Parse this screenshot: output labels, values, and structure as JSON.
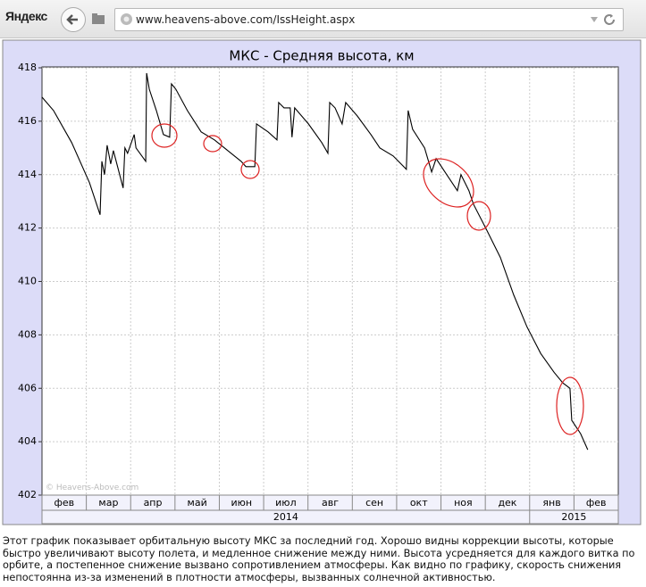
{
  "browser": {
    "logo": "Яндекс",
    "url": "www.heavens-above.com/IssHeight.aspx"
  },
  "chart_data": {
    "type": "line",
    "title": "МКС - Средняя высота, км",
    "watermark": "© Heavens-Above.com",
    "categories": [
      "фев",
      "мар",
      "апр",
      "май",
      "июн",
      "июл",
      "авг",
      "сен",
      "окт",
      "ноя",
      "дек",
      "янв",
      "фев"
    ],
    "years": [
      "2014",
      "2015"
    ],
    "x": [
      0,
      0.26,
      0.67,
      1.07,
      1.31,
      1.35,
      1.41,
      1.47,
      1.55,
      1.61,
      1.83,
      1.87,
      1.93,
      2.08,
      2.12,
      2.34,
      2.36,
      2.42,
      2.58,
      2.74,
      2.88,
      2.92,
      3.02,
      3.28,
      3.59,
      3.89,
      4.19,
      4.49,
      4.6,
      4.8,
      4.84,
      5.1,
      5.3,
      5.34,
      5.46,
      5.6,
      5.64,
      5.7,
      6.01,
      6.31,
      6.45,
      6.49,
      6.61,
      6.77,
      6.85,
      7.11,
      7.42,
      7.62,
      7.92,
      8.22,
      8.26,
      8.36,
      8.63,
      8.79,
      8.89,
      9.13,
      9.37,
      9.45,
      9.63,
      9.73,
      10.04,
      10.34,
      10.64,
      10.94,
      11.25,
      11.55,
      11.75,
      11.91,
      11.95,
      12.15,
      12.31
    ],
    "values": [
      416.9,
      416.4,
      415.2,
      413.7,
      412.5,
      414.5,
      414.0,
      415.1,
      414.4,
      414.9,
      413.5,
      415.0,
      414.8,
      415.5,
      415.0,
      414.5,
      417.8,
      417.2,
      416.4,
      415.5,
      415.4,
      417.4,
      417.2,
      416.4,
      415.6,
      415.3,
      414.9,
      414.5,
      414.3,
      414.3,
      415.9,
      415.6,
      415.3,
      416.7,
      416.5,
      416.5,
      415.4,
      416.5,
      415.9,
      415.2,
      414.8,
      416.7,
      416.5,
      415.9,
      416.7,
      416.2,
      415.5,
      415.0,
      414.7,
      414.2,
      416.4,
      415.7,
      415.0,
      414.1,
      414.6,
      414.0,
      413.4,
      414.0,
      413.4,
      412.9,
      411.9,
      410.9,
      409.5,
      408.3,
      407.3,
      406.6,
      406.2,
      406.0,
      404.8,
      404.3,
      403.7
    ],
    "color": "#000000",
    "xlim": [
      0,
      13
    ],
    "ylim": [
      402,
      418
    ],
    "yticks": [
      402,
      404,
      406,
      408,
      410,
      412,
      414,
      416,
      418
    ],
    "grid": true
  },
  "caption": [
    "Этот график показывает орбитальную высоту МКС за последний год. Хорошо видны коррекции высоты, которые",
    "быстро увеличивают высоту полета, и медленное снижение между ними. Высота усредняется для каждого витка по",
    "орбите, а постепенное снижение вызвано сопротивлением атмосферы. Как видно по графику, скорость снижения",
    "непостоянна из-за изменений в плотности атмосферы, вызванных солнечной активностью."
  ]
}
